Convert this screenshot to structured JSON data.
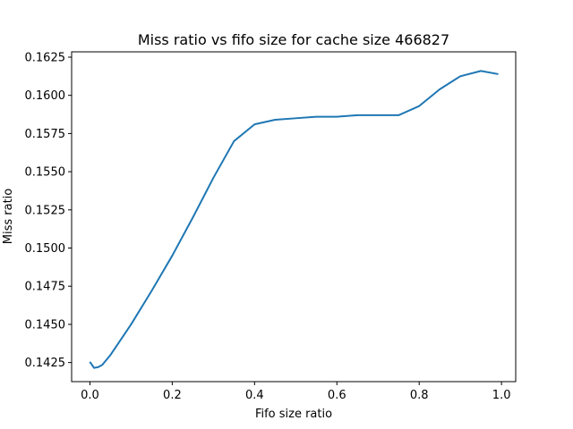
{
  "chart_data": {
    "type": "line",
    "title": "Miss ratio vs fifo size for cache size 466827",
    "xlabel": "Fifo size ratio",
    "ylabel": "Miss ratio",
    "xlim": [
      -0.0445,
      1.0345
    ],
    "ylim": [
      0.14125,
      0.16285
    ],
    "x_ticks": [
      "0.0",
      "0.2",
      "0.4",
      "0.6",
      "0.8",
      "1.0"
    ],
    "x_tick_values": [
      0.0,
      0.2,
      0.4,
      0.6,
      0.8,
      1.0
    ],
    "y_ticks": [
      "0.1425",
      "0.1450",
      "0.1475",
      "0.1500",
      "0.1525",
      "0.1550",
      "0.1575",
      "0.1600",
      "0.1625"
    ],
    "y_tick_values": [
      0.1425,
      0.145,
      0.1475,
      0.15,
      0.1525,
      0.155,
      0.1575,
      0.16,
      0.1625
    ],
    "grid": false,
    "legend": "none",
    "series": [
      {
        "color": "#1f77b4",
        "x": [
          0.001,
          0.01,
          0.02,
          0.03,
          0.05,
          0.1,
          0.15,
          0.2,
          0.25,
          0.3,
          0.35,
          0.4,
          0.45,
          0.5,
          0.55,
          0.6,
          0.65,
          0.7,
          0.75,
          0.8,
          0.85,
          0.9,
          0.95,
          0.99
        ],
        "y": [
          0.1425,
          0.14215,
          0.1422,
          0.14235,
          0.143,
          0.145,
          0.1472,
          0.1495,
          0.152,
          0.1546,
          0.157,
          0.1581,
          0.1584,
          0.1585,
          0.1586,
          0.1586,
          0.1587,
          0.1587,
          0.1587,
          0.1593,
          0.1604,
          0.16125,
          0.1616,
          0.1614
        ]
      }
    ]
  }
}
